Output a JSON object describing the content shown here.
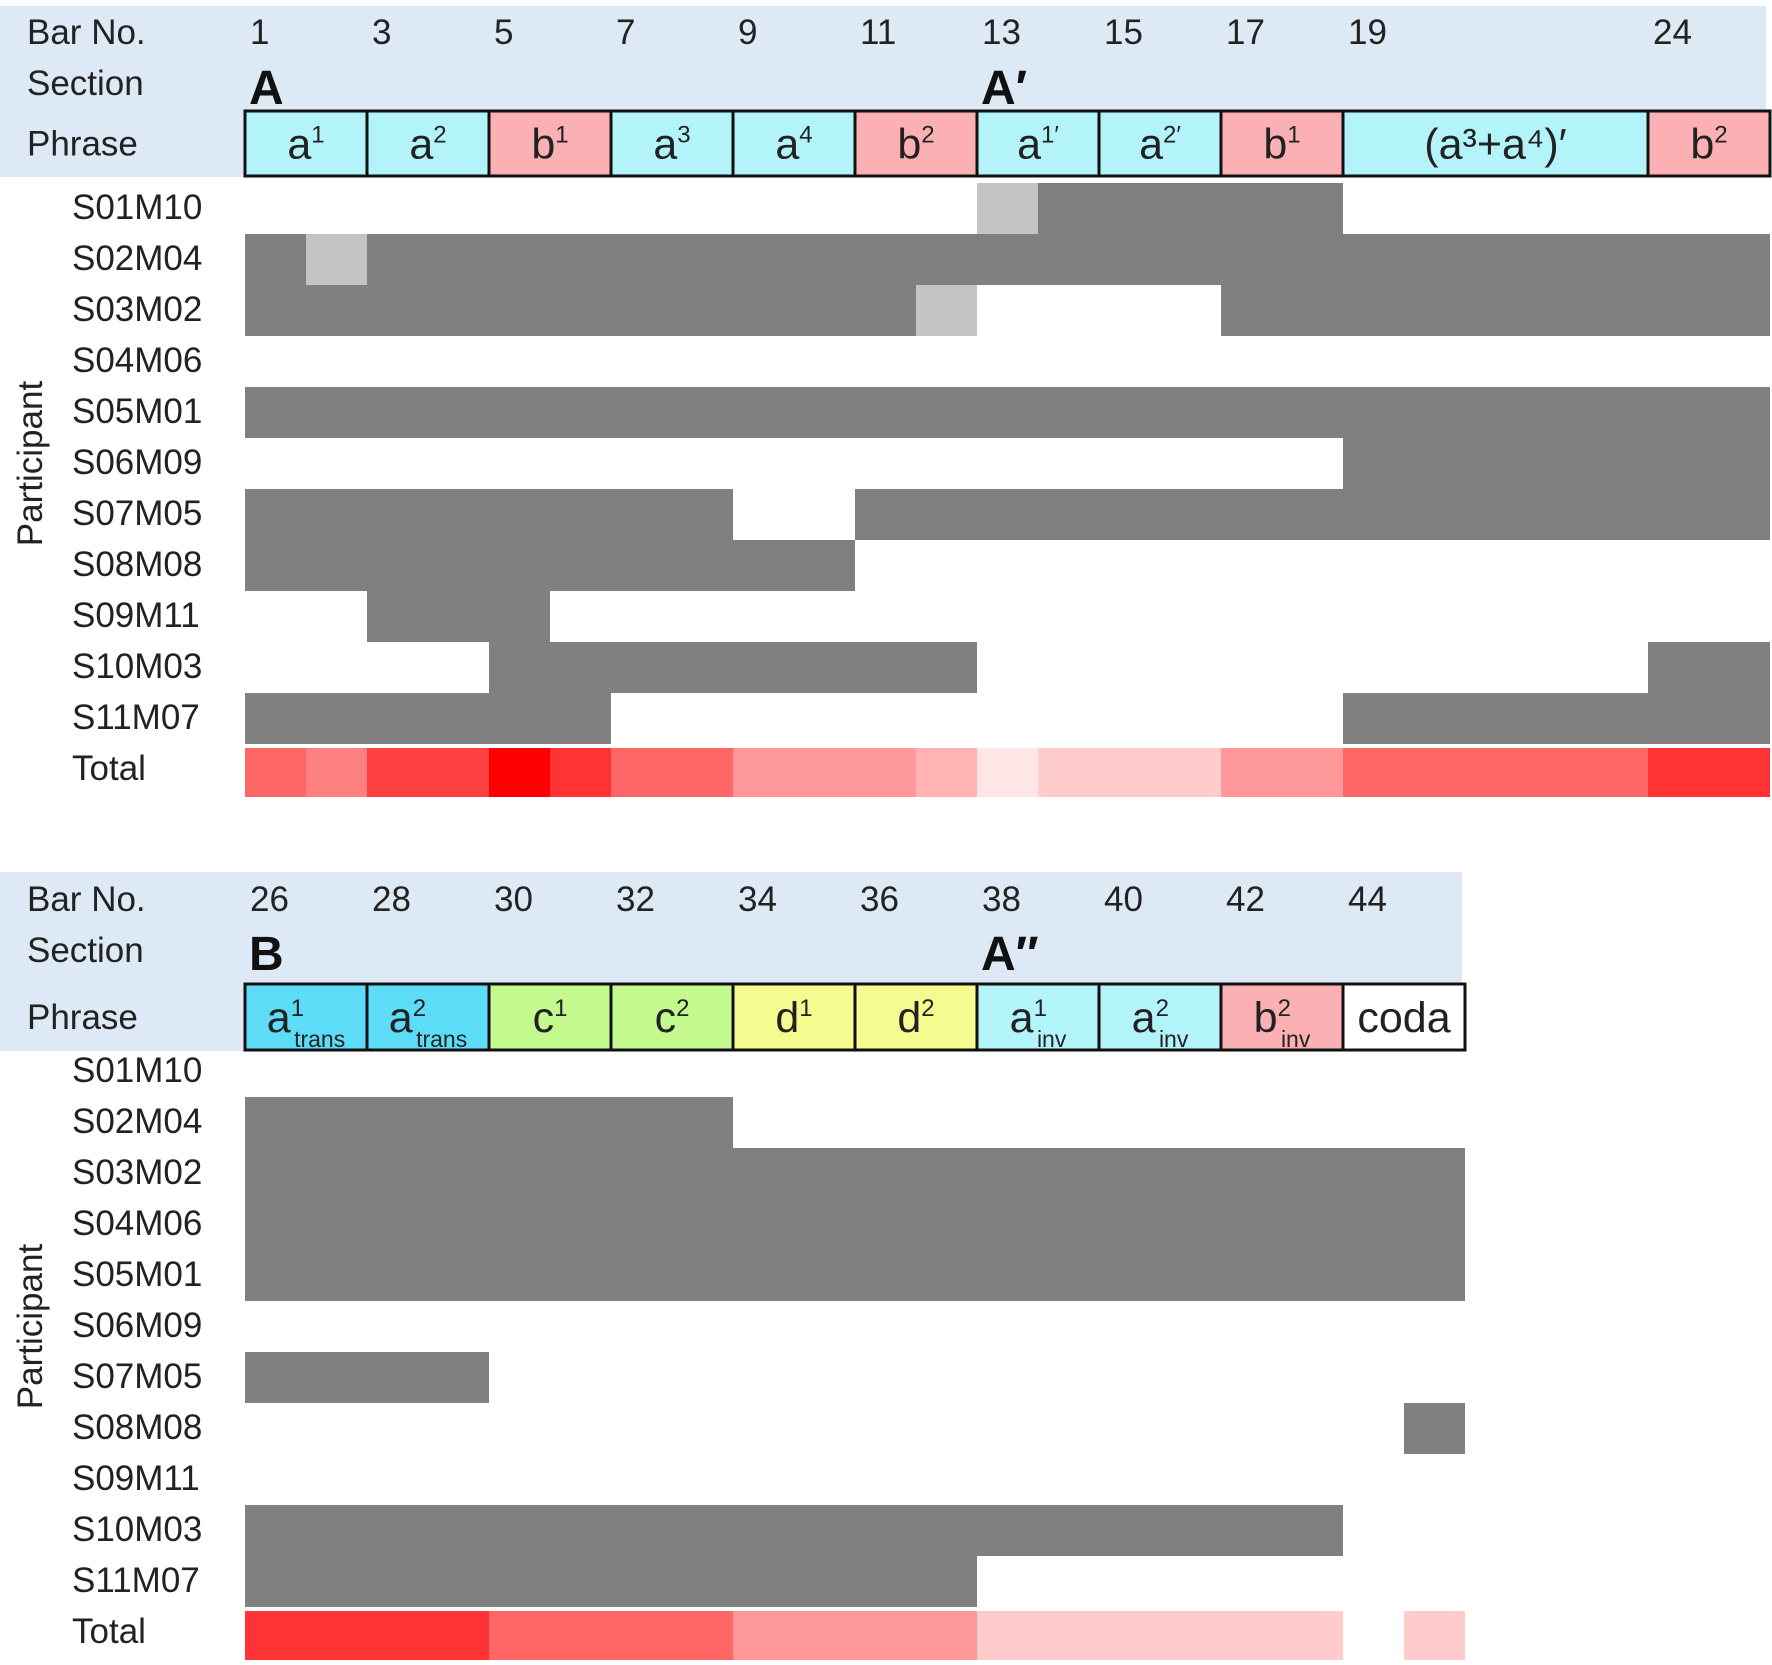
{
  "chart_data": [
    {
      "type": "heatmap",
      "bar_no_label": "Bar No.",
      "section_label": "Section",
      "phrase_label": "Phrase",
      "participant_axis_label": "Participant",
      "total_label": "Total",
      "bar_range": [
        1,
        25
      ],
      "bar_ticks": [
        "1",
        "3",
        "5",
        "7",
        "9",
        "11",
        "13",
        "15",
        "17",
        "19",
        "24"
      ],
      "bar_tick_positions": [
        1,
        3,
        5,
        7,
        9,
        11,
        13,
        15,
        17,
        19,
        24
      ],
      "sections": [
        {
          "label": "A",
          "start_bar": 1
        },
        {
          "label": "A′",
          "start_bar": 13
        }
      ],
      "phrases": [
        {
          "base": "a",
          "sup": "1",
          "sub": "",
          "start": 1,
          "end": 2,
          "color": "#b3f4fa"
        },
        {
          "base": "a",
          "sup": "2",
          "sub": "",
          "start": 3,
          "end": 4,
          "color": "#b3f4fa"
        },
        {
          "base": "b",
          "sup": "1",
          "sub": "",
          "start": 5,
          "end": 6,
          "color": "#fbb0b4"
        },
        {
          "base": "a",
          "sup": "3",
          "sub": "",
          "start": 7,
          "end": 8,
          "color": "#b3f4fa"
        },
        {
          "base": "a",
          "sup": "4",
          "sub": "",
          "start": 9,
          "end": 10,
          "color": "#b3f4fa"
        },
        {
          "base": "b",
          "sup": "2",
          "sub": "",
          "start": 11,
          "end": 12,
          "color": "#fbb0b4"
        },
        {
          "base": "a",
          "sup": "1′",
          "sub": "",
          "start": 13,
          "end": 14,
          "color": "#b3f4fa"
        },
        {
          "base": "a",
          "sup": "2′",
          "sub": "",
          "start": 15,
          "end": 16,
          "color": "#b3f4fa"
        },
        {
          "base": "b",
          "sup": "1",
          "sub": "",
          "start": 17,
          "end": 18,
          "color": "#fbb0b4"
        },
        {
          "base": "(a³+a⁴)′",
          "sup": "",
          "sub": "",
          "start": 19,
          "end": 23,
          "color": "#b3f4fa"
        },
        {
          "base": "b",
          "sup": "2",
          "sub": "",
          "start": 24,
          "end": 25,
          "color": "#fbb0b4"
        }
      ],
      "participants": [
        {
          "id": "S01M10",
          "dark": [
            [
              14,
              18
            ]
          ],
          "light": [
            [
              13,
              13
            ]
          ]
        },
        {
          "id": "S02M04",
          "dark": [
            [
              1,
              1
            ],
            [
              3,
              25
            ]
          ],
          "light": [
            [
              2,
              2
            ]
          ]
        },
        {
          "id": "S03M02",
          "dark": [
            [
              1,
              11
            ],
            [
              17,
              25
            ]
          ],
          "light": [
            [
              12,
              12
            ]
          ]
        },
        {
          "id": "S04M06",
          "dark": [],
          "light": []
        },
        {
          "id": "S05M01",
          "dark": [
            [
              1,
              25
            ]
          ],
          "light": []
        },
        {
          "id": "S06M09",
          "dark": [
            [
              19,
              25
            ]
          ],
          "light": []
        },
        {
          "id": "S07M05",
          "dark": [
            [
              1,
              8
            ],
            [
              11,
              25
            ]
          ],
          "light": []
        },
        {
          "id": "S08M08",
          "dark": [
            [
              1,
              10
            ]
          ],
          "light": []
        },
        {
          "id": "S09M11",
          "dark": [
            [
              3,
              5
            ]
          ],
          "light": []
        },
        {
          "id": "S10M03",
          "dark": [
            [
              5,
              12
            ],
            [
              24,
              25
            ]
          ],
          "light": []
        },
        {
          "id": "S11M07",
          "dark": [
            [
              1,
              6
            ],
            [
              19,
              25
            ]
          ],
          "light": []
        }
      ],
      "total_intensity": [
        {
          "start": 1,
          "end": 1,
          "value": 0.6
        },
        {
          "start": 2,
          "end": 2,
          "value": 0.5
        },
        {
          "start": 3,
          "end": 4,
          "value": 0.75
        },
        {
          "start": 5,
          "end": 5,
          "value": 1.0
        },
        {
          "start": 6,
          "end": 6,
          "value": 0.8
        },
        {
          "start": 7,
          "end": 8,
          "value": 0.6
        },
        {
          "start": 9,
          "end": 11,
          "value": 0.4
        },
        {
          "start": 12,
          "end": 12,
          "value": 0.3
        },
        {
          "start": 13,
          "end": 13,
          "value": 0.1
        },
        {
          "start": 14,
          "end": 16,
          "value": 0.2
        },
        {
          "start": 17,
          "end": 18,
          "value": 0.4
        },
        {
          "start": 19,
          "end": 23,
          "value": 0.6
        },
        {
          "start": 24,
          "end": 25,
          "value": 0.8
        }
      ]
    },
    {
      "type": "heatmap",
      "bar_no_label": "Bar No.",
      "section_label": "Section",
      "phrase_label": "Phrase",
      "participant_axis_label": "Participant",
      "total_label": "Total",
      "bar_range": [
        26,
        45
      ],
      "bar_ticks": [
        "26",
        "28",
        "30",
        "32",
        "34",
        "36",
        "38",
        "40",
        "42",
        "44"
      ],
      "bar_tick_positions": [
        26,
        28,
        30,
        32,
        34,
        36,
        38,
        40,
        42,
        44
      ],
      "sections": [
        {
          "label": "B",
          "start_bar": 26
        },
        {
          "label": "A″",
          "start_bar": 38
        }
      ],
      "phrases": [
        {
          "base": "a",
          "sup": "1",
          "sub": "trans",
          "start": 26,
          "end": 27,
          "color": "#5ddcf7"
        },
        {
          "base": "a",
          "sup": "2",
          "sub": "trans",
          "start": 28,
          "end": 29,
          "color": "#5ddcf7"
        },
        {
          "base": "c",
          "sup": "1",
          "sub": "",
          "start": 30,
          "end": 31,
          "color": "#c3f98e"
        },
        {
          "base": "c",
          "sup": "2",
          "sub": "",
          "start": 32,
          "end": 33,
          "color": "#c3f98e"
        },
        {
          "base": "d",
          "sup": "1",
          "sub": "",
          "start": 34,
          "end": 35,
          "color": "#f5fb8e"
        },
        {
          "base": "d",
          "sup": "2",
          "sub": "",
          "start": 36,
          "end": 37,
          "color": "#f5fb8e"
        },
        {
          "base": "a",
          "sup": "1",
          "sub": "inv",
          "start": 38,
          "end": 39,
          "color": "#b3f4fa"
        },
        {
          "base": "a",
          "sup": "2",
          "sub": "inv",
          "start": 40,
          "end": 41,
          "color": "#b3f4fa"
        },
        {
          "base": "b",
          "sup": "2",
          "sub": "inv",
          "start": 42,
          "end": 43,
          "color": "#fbb0b4"
        },
        {
          "base": "coda",
          "sup": "",
          "sub": "",
          "start": 44,
          "end": 45,
          "color": "#ffffff"
        }
      ],
      "participants": [
        {
          "id": "S01M10",
          "dark": [],
          "light": []
        },
        {
          "id": "S02M04",
          "dark": [
            [
              26,
              33
            ]
          ],
          "light": []
        },
        {
          "id": "S03M02",
          "dark": [
            [
              26,
              45
            ]
          ],
          "light": []
        },
        {
          "id": "S04M06",
          "dark": [
            [
              26,
              45
            ]
          ],
          "light": []
        },
        {
          "id": "S05M01",
          "dark": [
            [
              26,
              45
            ]
          ],
          "light": []
        },
        {
          "id": "S06M09",
          "dark": [],
          "light": []
        },
        {
          "id": "S07M05",
          "dark": [
            [
              26,
              29
            ]
          ],
          "light": []
        },
        {
          "id": "S08M08",
          "dark": [
            [
              45,
              45
            ]
          ],
          "light": []
        },
        {
          "id": "S09M11",
          "dark": [],
          "light": []
        },
        {
          "id": "S10M03",
          "dark": [
            [
              26,
              43
            ]
          ],
          "light": []
        },
        {
          "id": "S11M07",
          "dark": [
            [
              26,
              37
            ]
          ],
          "light": []
        }
      ],
      "total_intensity": [
        {
          "start": 26,
          "end": 29,
          "value": 0.8
        },
        {
          "start": 30,
          "end": 33,
          "value": 0.6
        },
        {
          "start": 34,
          "end": 37,
          "value": 0.4
        },
        {
          "start": 38,
          "end": 43,
          "value": 0.2
        },
        {
          "start": 45,
          "end": 45,
          "value": 0.2
        }
      ]
    }
  ]
}
